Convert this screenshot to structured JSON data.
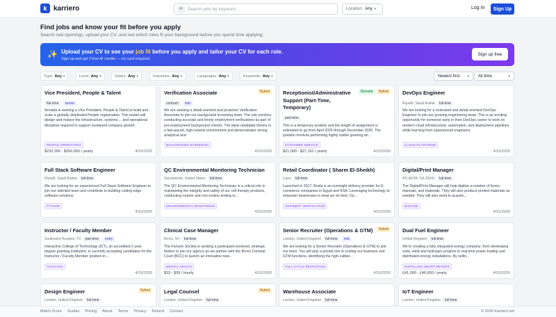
{
  "header": {
    "logo_letter": "k",
    "logo_text": "karriero",
    "search_tag": "AI",
    "search_placeholder": "Search jobs by keyword...",
    "location_label": "Location:",
    "location_value": "Any",
    "login": "Log In",
    "signup": "Sign Up"
  },
  "intro": {
    "title": "Find jobs and know your fit before you apply",
    "subtitle": "Search real openings, upload your CV, and see which roles fit your background before you spend time applying."
  },
  "banner": {
    "title_pre": "Upload your CV to see your ",
    "title_highlight": "job fit",
    "title_post": " before you apply and tailor your CV for each role.",
    "subtitle": "Sign up and get 3 free AI credits — no card required.",
    "button": "Sign up free"
  },
  "filters": [
    {
      "label": "Type:",
      "value": "Any"
    },
    {
      "label": "Level:",
      "value": "Any"
    },
    {
      "label": "Salary:",
      "value": "Any"
    },
    {
      "label": "Industries:",
      "value": "Any"
    },
    {
      "label": "Languages:",
      "value": "Any"
    },
    {
      "label": "Keywords:",
      "value": "Any"
    }
  ],
  "sort": {
    "order": "Newest first",
    "range": "All time"
  },
  "jobs": [
    {
      "title": "Vice President, People & Talent",
      "badges": [],
      "location": "",
      "tags": [
        "full-time",
        "senior"
      ],
      "description": "Armada is seeking a Vice President, People & Talent to build and scale a globally distributed People organization. This leader will design and mature the infrastructure, systems,... and operational discipline required to support sustained company growth.",
      "category": "PEOPLE OPERATIONS",
      "salary": "$220,300 - $260,000 / yearly",
      "date": "4/15/2026"
    },
    {
      "title": "Verification Associate",
      "badges": [
        "Hybrid"
      ],
      "location": "",
      "tags": [
        "contract",
        "mid"
      ],
      "description": "We are seeking a detail-oriented and proactive Verification Associate to join our background screening team. The role involves conducting accurate and timely employment verifications as part of pre-employment background checks. The ideal candidate thrives in a fast-paced, high-volume environment and demonstrates strong analytical and",
      "category": "BACKGROUND SCREENING",
      "salary": "",
      "date": "4/15/2026"
    },
    {
      "title": "Receptionist/Administrative Support (Part-Time, Temporary)",
      "badges": [
        "Remote",
        "Hybrid"
      ],
      "location": "",
      "tags": [
        "part-time"
      ],
      "description": "This is a temporary position and the length of assignment is estimated to go from April 2026 through December 2026. The position involves performing highly visible greeting an...",
      "category": "CUSTOMER SERVICE",
      "salary": "$21,000 - $27,110 / yearly",
      "date": "4/15/2026"
    },
    {
      "title": "DevOps Engineer",
      "badges": [],
      "location": "Riyadh, Saudi Arabia",
      "tags": [
        "full-time"
      ],
      "description": "We are looking for a motivated and detail-oriented DevOps Engineer to join our growing engineering team. This is an exciting opportunity for someone early in their DevOps career to work on modern cloud infrastructure, automation, and deployment pipelines while learning from experienced engineers.",
      "category": "CLOUD PLATFORMS",
      "salary": "",
      "date": "4/15/2026"
    },
    {
      "title": "Full Stack Software Engineer",
      "badges": [],
      "location": "Riyadh, Saudi Arabia",
      "tags": [
        "full-time"
      ],
      "description": "We are looking for an experienced Full Stack Software Engineer to join our talented team and contribute to building cutting-edge software solutions.",
      "category": "PYTHON",
      "salary": "",
      "date": "4/15/2026"
    },
    {
      "title": "QC Environmental Monitoring Technician",
      "badges": [],
      "location": "Sacramento, United States",
      "tags": [
        "full-time"
      ],
      "description": "The QC Environmental Monitoring Technician is a critical role in maintaining the integrity and safety of our cell therapy products, conducting routine and non-routine testing to...",
      "category": "ENVIRONMENTAL MONITORING",
      "salary": "",
      "date": "4/15/2026"
    },
    {
      "title": "Retail Coordinator ( Sharm El-Sheikh)",
      "badges": [],
      "location": "Cairo",
      "tags": [
        "full-time"
      ],
      "description": "Launched in 2017, Bosta is an overnight delivery provider for E-commerce companies in Egypt and KSA. Leveraging technology to empower businesses is what we do best. Ou...",
      "category": "SHIPMENT VERIFICATION",
      "salary": "",
      "date": "4/15/2026"
    },
    {
      "title": "Digital/Print Manager",
      "badges": [],
      "location": "ATLANTA, GA 30341",
      "tags": [
        "full-time"
      ],
      "description": "The Digital/Print Manager will help digitize a number of forms, manuals, and materials. They will also produce printed materials as needed. They will also need to acquire...",
      "category": "DIGITIZE",
      "salary": "",
      "date": "4/15/2026"
    },
    {
      "title": "Instructor / Faculty Member",
      "badges": [],
      "location": "Southwest Houston, TX",
      "tags": [
        "part-time",
        "entry"
      ],
      "description": "Interactive College of Technology (ICT), an accredited 2-year degree granting institution, is currently accepting candidates for the Instructor / Faculty Member position in...",
      "category": "TEACHING",
      "salary": "",
      "date": "4/15/2026"
    },
    {
      "title": "Clinical Case Manager",
      "badges": [],
      "location": "Bronx, NY",
      "tags": [
        "full-time"
      ],
      "description": "The Fortune Society is seeking a participant-centered, strategic thinker to join our agency as we partner with the Bronx Criminal Court (BCC) to launch an innovative new...",
      "category": "MENTAL HEALTH",
      "salary": "$33 - $39 / hourly",
      "date": "4/15/2026"
    },
    {
      "title": "Senior Recruiter (Operations & GTM)",
      "badges": [
        "Hybrid"
      ],
      "location": "London, United Kingdom",
      "tags": [
        "full-time",
        "mid"
      ],
      "description": "We are looking for a Senior Recruiter (Operations & GTM) to join our team. You will play a pivotal role in scaling our business and GTM functions, identifying the high-caliber...",
      "category": "FULL-CYCLE RECRUITING",
      "salary": "",
      "date": "4/15/2026"
    },
    {
      "title": "Dual Fuel Engineer",
      "badges": [],
      "location": "United Kingdom",
      "tags": [
        "full-time"
      ],
      "description": "We're creating a fully integrated energy company: from developing solar, wind and hydrogen projects to real-time power trading and distributed energy installations. By sellin...",
      "category": "INSTALLING SMART METERS",
      "salary": "£41,000 - £46,600 / yearly",
      "date": "4/15/2026"
    },
    {
      "title": "Design Engineer",
      "badges": [
        "Hybrid"
      ],
      "location": "London, United Kingdom",
      "tags": [
        "full-time"
      ],
      "description": "",
      "category": "",
      "salary": "",
      "date": ""
    },
    {
      "title": "Legal Counsel",
      "badges": [
        "Hybrid"
      ],
      "location": "London, United Kingdom",
      "tags": [
        "full-time"
      ],
      "description": "",
      "category": "",
      "salary": "",
      "date": ""
    },
    {
      "title": "Warehouse Associate",
      "badges": [],
      "location": "London, United Kingdom",
      "tags": [
        "full-time"
      ],
      "description": "",
      "category": "",
      "salary": "",
      "date": ""
    },
    {
      "title": "IoT Engineer",
      "badges": [],
      "location": "London, United Kingdom",
      "tags": [
        "full-time"
      ],
      "description": "",
      "category": "",
      "salary": "",
      "date": ""
    }
  ],
  "footer": {
    "links": [
      "Match Score",
      "Guides",
      "Pricing",
      "About",
      "Terms",
      "Privacy",
      "Refund",
      "Contact"
    ],
    "copyright": "© 2026 Karriero.net"
  }
}
